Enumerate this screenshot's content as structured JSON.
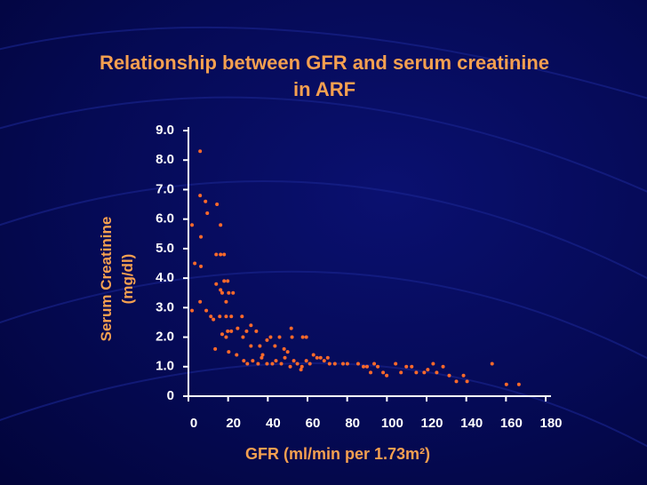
{
  "chart_data": {
    "type": "scatter",
    "title": "Relationship between GFR and serum creatinine in ARF",
    "xlabel": "GFR (ml/min per 1.73m²)",
    "ylabel": "Serum Creatinine (mg/dl)",
    "color": "#ff6a2a",
    "xlim": [
      0,
      180
    ],
    "xticks": [
      0,
      20,
      40,
      60,
      80,
      100,
      120,
      140,
      160,
      180
    ],
    "ylim": [
      0,
      9
    ],
    "yticks": [
      0,
      {
        "value": 1,
        "label": "1.0"
      },
      {
        "value": 2,
        "label": "2.0"
      },
      {
        "value": 3,
        "label": "3.0"
      },
      {
        "value": 4,
        "label": "4.0"
      },
      {
        "value": 5,
        "label": "5.0"
      },
      {
        "value": 6,
        "label": "6.0"
      },
      {
        "value": 7,
        "label": "7.0"
      },
      {
        "value": 8,
        "label": "8.0"
      },
      {
        "value": 9,
        "label": "9.0"
      }
    ],
    "x": [
      5.9,
      5.9,
      8.6,
      14.4,
      9.5,
      16.2,
      6.3,
      1.8,
      3.2,
      6.3,
      14,
      16.2,
      18,
      5.9,
      9,
      11.3,
      12.6,
      14,
      16.2,
      18,
      19.8,
      20.3,
      22.5,
      17,
      19,
      15.8,
      19,
      21.6,
      17,
      19.8,
      21.6,
      19,
      27,
      24.8,
      29.3,
      31.5,
      34.2,
      20.3,
      24.3,
      27.9,
      29.7,
      32.4,
      35.1,
      37.4,
      39.6,
      41.4,
      43.6,
      45.9,
      48.2,
      50,
      51.8,
      52.2,
      57.6,
      59.4,
      36.9,
      39.6,
      44.1,
      46.8,
      48.6,
      53.1,
      54.9,
      57.2,
      59.4,
      61.2,
      63,
      64.8,
      66.6,
      68.4,
      70.2,
      71.1,
      73.8,
      77.9,
      80.1,
      85.5,
      88.2,
      90,
      91.8,
      93.6,
      95.4,
      98.1,
      99.9,
      104.4,
      107.1,
      109.8,
      112.5,
      114.8,
      118.8,
      120.6,
      123.3,
      125.1,
      128.3,
      131.4,
      135,
      138.6,
      140.4,
      153,
      160.2,
      166.5,
      1.8,
      36,
      31.5,
      42.3,
      51.3,
      56.7,
      13.5,
      27.5
    ],
    "values": [
      8.3,
      6.8,
      6.6,
      6.5,
      6.2,
      5.8,
      5.4,
      5.8,
      4.5,
      4.4,
      4.8,
      4.8,
      4.8,
      3.2,
      2.9,
      2.7,
      2.6,
      3.8,
      3.6,
      3.9,
      3.9,
      3.5,
      3.5,
      3.5,
      3.2,
      2.7,
      2.7,
      2.7,
      2.1,
      2.2,
      2.2,
      2,
      2.7,
      2.3,
      2.2,
      2.4,
      2.2,
      1.5,
      1.4,
      1.2,
      1.1,
      1.2,
      1.1,
      1.4,
      1.9,
      2,
      1.7,
      2,
      1.6,
      1.5,
      2.3,
      2,
      2,
      2,
      1.3,
      1.1,
      1.2,
      1.1,
      1.3,
      1.2,
      1.1,
      1,
      1.2,
      1.1,
      1.4,
      1.3,
      1.3,
      1.2,
      1.3,
      1.1,
      1.1,
      1.1,
      1.1,
      1.1,
      1,
      1,
      0.8,
      1.1,
      1,
      0.8,
      0.7,
      1.1,
      0.8,
      1,
      1,
      0.8,
      0.8,
      0.9,
      1.1,
      0.8,
      1,
      0.7,
      0.5,
      0.7,
      0.5,
      1.1,
      0.4,
      0.4,
      2.9,
      1.7,
      1.7,
      1.1,
      1,
      0.9,
      1.6,
      2
    ]
  }
}
